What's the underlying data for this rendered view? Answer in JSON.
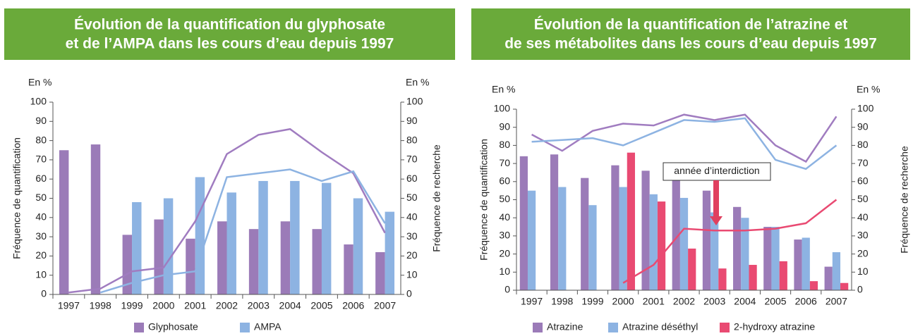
{
  "chart_data": [
    {
      "type": "bar",
      "title": [
        "Évolution de la quantification du glyphosate",
        "et de l’AMPA dans les cours d’eau depuis 1997"
      ],
      "y_unit": "En %",
      "y2_unit": "En %",
      "ylabel": "Fréquence de quantification",
      "y2label": "Fréquence de recherche",
      "categories": [
        "1997",
        "1998",
        "1999",
        "2000",
        "2001",
        "2002",
        "2003",
        "2004",
        "2005",
        "2006",
        "2007"
      ],
      "ylim": [
        0,
        100
      ],
      "yticks": [
        0,
        10,
        20,
        30,
        40,
        50,
        60,
        70,
        80,
        90,
        100
      ],
      "y2lim": [
        0,
        100
      ],
      "y2ticks": [
        0,
        10,
        20,
        30,
        40,
        50,
        60,
        70,
        80,
        90,
        100
      ],
      "series": [
        {
          "name": "Glyphosate",
          "color": "#9b7bb8",
          "values": [
            75,
            78,
            31,
            39,
            29,
            38,
            34,
            38,
            34,
            26,
            22
          ]
        },
        {
          "name": "AMPA",
          "color": "#8db3e2",
          "values": [
            null,
            null,
            48,
            50,
            61,
            53,
            59,
            59,
            58,
            50,
            43
          ]
        },
        {
          "type": "line",
          "axis": "y2",
          "color": "#a07cc0",
          "values": [
            1,
            3,
            12,
            14,
            38,
            73,
            83,
            86,
            74,
            63,
            32
          ]
        },
        {
          "type": "line",
          "axis": "y2",
          "color": "#8db3e2",
          "values": [
            null,
            1,
            6,
            10,
            12,
            61,
            63,
            65,
            59,
            64,
            37
          ]
        }
      ]
    },
    {
      "type": "bar",
      "title": [
        "Évolution de la quantification de l’atrazine et",
        "de ses métabolites dans les cours d’eau depuis 1997"
      ],
      "y_unit": "En %",
      "y2_unit": "En %",
      "ylabel": "Fréquence de quantification",
      "y2label": "Fréquence de recherche",
      "annotation": "année d’interdiction",
      "categories": [
        "1997",
        "1998",
        "1999",
        "2000",
        "2001",
        "2002",
        "2003",
        "2004",
        "2005",
        "2006",
        "2007"
      ],
      "ylim": [
        0,
        100
      ],
      "yticks": [
        0,
        10,
        20,
        30,
        40,
        50,
        60,
        70,
        80,
        90,
        100
      ],
      "y2lim": [
        0,
        100
      ],
      "y2ticks": [
        0,
        10,
        20,
        30,
        40,
        50,
        60,
        70,
        80,
        90,
        100
      ],
      "series": [
        {
          "name": "Atrazine",
          "color": "#9b7bb8",
          "values": [
            74,
            75,
            62,
            69,
            66,
            61,
            55,
            46,
            35,
            28,
            13
          ]
        },
        {
          "name": "Atrazine déséthyl",
          "color": "#8db3e2",
          "values": [
            55,
            57,
            47,
            57,
            53,
            51,
            43,
            40,
            35,
            29,
            21
          ]
        },
        {
          "name": "2-hydroxy atrazine",
          "color": "#e94a72",
          "values": [
            null,
            null,
            null,
            76,
            49,
            23,
            12,
            14,
            16,
            5,
            4
          ]
        },
        {
          "type": "line",
          "axis": "y2",
          "color": "#a07cc0",
          "values": [
            86,
            77,
            88,
            92,
            91,
            97,
            94,
            97,
            80,
            71,
            96
          ]
        },
        {
          "type": "line",
          "axis": "y2",
          "color": "#8db3e2",
          "values": [
            82,
            83,
            84,
            80,
            87,
            94,
            93,
            95,
            72,
            67,
            80
          ]
        },
        {
          "type": "line",
          "axis": "y2",
          "color": "#e94a72",
          "values": [
            null,
            null,
            null,
            4,
            14,
            34,
            33,
            33,
            34,
            37,
            50
          ]
        }
      ]
    }
  ]
}
